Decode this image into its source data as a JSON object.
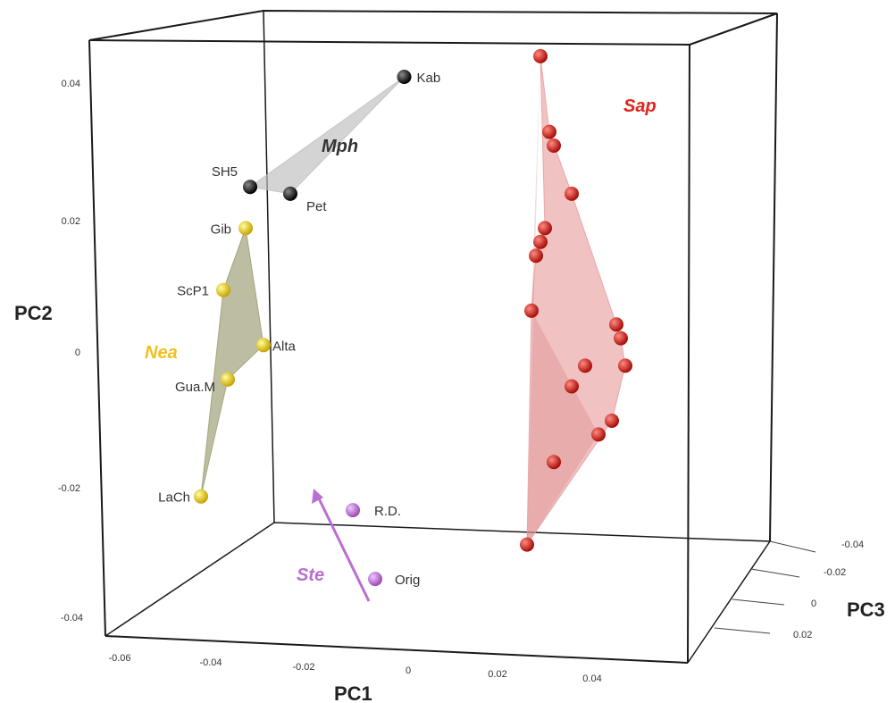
{
  "chart_data": {
    "type": "scatter",
    "title": "",
    "axes": {
      "x": {
        "label": "PC1",
        "ticks": [
          "-0.06",
          "-0.04",
          "-0.02",
          "0",
          "0.02",
          "0.04"
        ]
      },
      "y": {
        "label": "PC2",
        "ticks": [
          "0.04",
          "0.02",
          "0",
          "-0.02",
          "-0.04"
        ]
      },
      "z": {
        "label": "PC3",
        "ticks": [
          "-0.04",
          "-0.02",
          "0",
          "0.02"
        ]
      }
    },
    "groups": [
      {
        "name": "Mph",
        "color": "#222222",
        "hull_color": "#bdbdbd",
        "points": [
          {
            "label": "Kab",
            "x": -0.0005,
            "y": 0.04
          },
          {
            "label": "SH5",
            "x": -0.035,
            "y": 0.024
          },
          {
            "label": "Pet",
            "x": -0.026,
            "y": 0.023
          }
        ]
      },
      {
        "name": "Nea",
        "color": "#f0c800",
        "hull_color": "#9a9a6e",
        "points": [
          {
            "label": "Gib",
            "x": -0.036,
            "y": 0.018
          },
          {
            "label": "ScP1",
            "x": -0.041,
            "y": 0.009
          },
          {
            "label": "Alta",
            "x": -0.032,
            "y": 0.001
          },
          {
            "label": "Gua.M",
            "x": -0.04,
            "y": -0.004
          },
          {
            "label": "LaCh",
            "x": -0.046,
            "y": -0.021
          }
        ]
      },
      {
        "name": "Ste",
        "color": "#b86fd0",
        "hull_color": "#b86fd0",
        "points": [
          {
            "label": "R.D.",
            "x": -0.012,
            "y": -0.023
          },
          {
            "label": "Orig",
            "x": -0.007,
            "y": -0.033
          }
        ]
      },
      {
        "name": "Sap",
        "color": "#e0231c",
        "hull_color": "#e89a9a",
        "points": [
          {
            "label": "",
            "x": 0.03,
            "y": 0.043
          },
          {
            "label": "",
            "x": 0.032,
            "y": 0.032
          },
          {
            "label": "",
            "x": 0.033,
            "y": 0.03
          },
          {
            "label": "",
            "x": 0.037,
            "y": 0.023
          },
          {
            "label": "",
            "x": 0.031,
            "y": 0.018
          },
          {
            "label": "",
            "x": 0.03,
            "y": 0.016
          },
          {
            "label": "",
            "x": 0.029,
            "y": 0.014
          },
          {
            "label": "",
            "x": 0.028,
            "y": 0.006
          },
          {
            "label": "",
            "x": 0.047,
            "y": 0.004
          },
          {
            "label": "",
            "x": 0.048,
            "y": 0.002
          },
          {
            "label": "",
            "x": 0.049,
            "y": -0.002
          },
          {
            "label": "",
            "x": 0.04,
            "y": -0.002
          },
          {
            "label": "",
            "x": 0.037,
            "y": -0.005
          },
          {
            "label": "",
            "x": 0.043,
            "y": -0.012
          },
          {
            "label": "",
            "x": 0.046,
            "y": -0.01
          },
          {
            "label": "",
            "x": 0.033,
            "y": -0.016
          },
          {
            "label": "",
            "x": 0.027,
            "y": -0.028
          }
        ]
      }
    ],
    "hulls": {
      "Mph": [
        [
          0,
          1
        ],
        [
          1,
          2
        ],
        [
          2,
          0
        ]
      ],
      "Nea": [
        [
          0,
          1
        ],
        [
          1,
          4
        ],
        [
          4,
          3
        ],
        [
          3,
          2
        ],
        [
          2,
          0
        ]
      ],
      "Sap": [
        [
          0,
          1
        ],
        [
          1,
          3
        ],
        [
          3,
          8
        ],
        [
          8,
          9
        ],
        [
          9,
          10
        ],
        [
          10,
          14
        ],
        [
          14,
          16
        ],
        [
          16,
          7
        ],
        [
          7,
          6
        ],
        [
          6,
          5
        ],
        [
          5,
          4
        ],
        [
          4,
          0
        ]
      ]
    },
    "grid": false,
    "legend": "none",
    "projection": "3d"
  }
}
